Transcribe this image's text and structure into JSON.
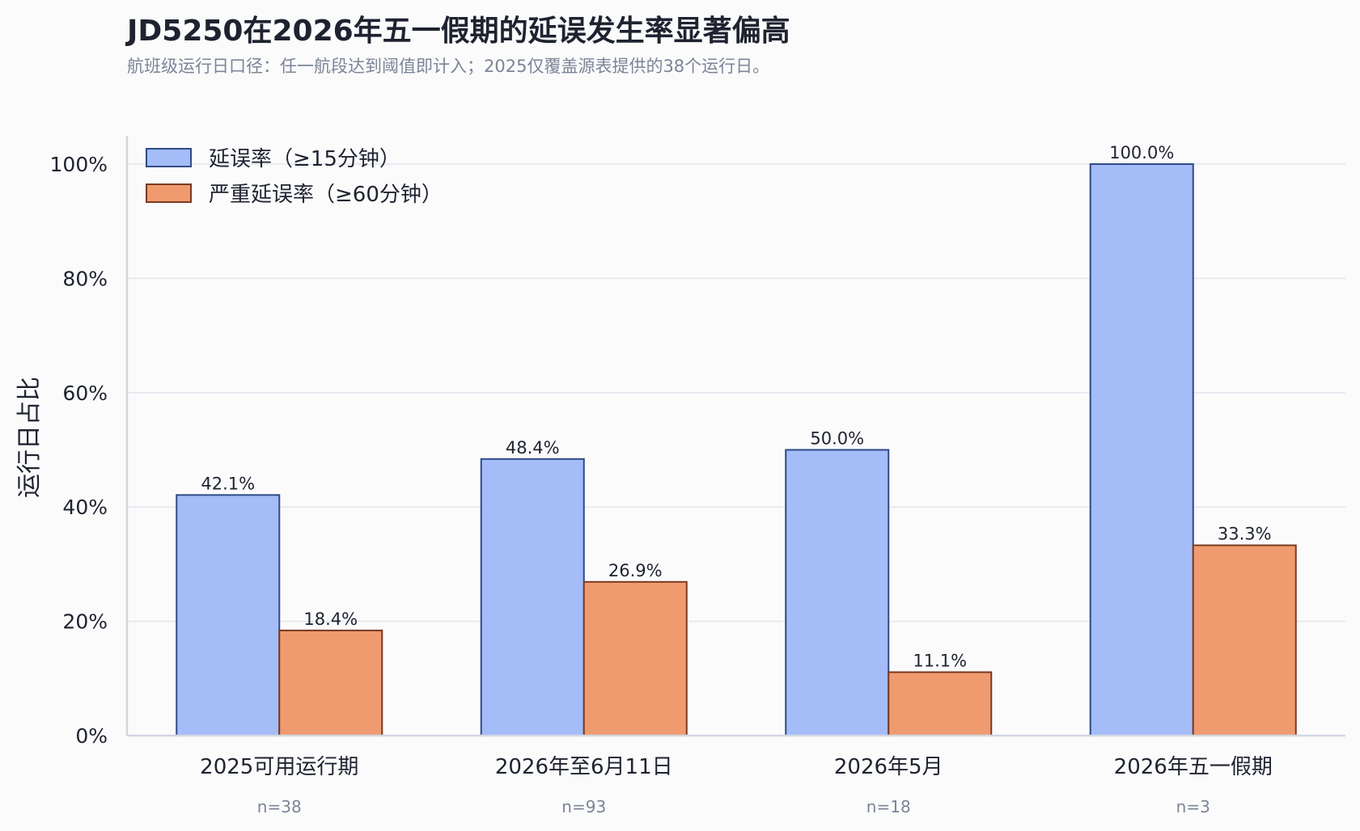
{
  "chart_data": {
    "type": "bar",
    "title": "JD5250在2026年五一假期的延误发生率显著偏高",
    "subtitle": "航班级运行日口径：任一航段达到阈值即计入；2025仅覆盖源表提供的38个运行日。",
    "ylabel": "运行日占比",
    "xlabel": "",
    "ylim": [
      0,
      100
    ],
    "y_ticks": [
      "0%",
      "20%",
      "40%",
      "60%",
      "80%",
      "100%"
    ],
    "y_tick_values": [
      0,
      20,
      40,
      60,
      80,
      100
    ],
    "categories": [
      "2025可用运行期",
      "2026年至6月11日",
      "2026年5月",
      "2026年五一假期"
    ],
    "sample_sizes": [
      "n=38",
      "n=93",
      "n=18",
      "n=3"
    ],
    "series": [
      {
        "name": "延误率（≥15分钟）",
        "values": [
          42.1,
          48.4,
          50.0,
          100.0
        ],
        "labels": [
          "42.1%",
          "48.4%",
          "50.0%",
          "100.0%"
        ],
        "color": "#a4bdf9",
        "edge": "#2f4a85"
      },
      {
        "name": "严重延误率（≥60分钟）",
        "values": [
          18.4,
          26.9,
          11.1,
          33.3
        ],
        "labels": [
          "18.4%",
          "26.9%",
          "11.1%",
          "33.3%"
        ],
        "color": "#f09a6f",
        "edge": "#7a3a22"
      }
    ],
    "grid": true,
    "legend_position": "top-left"
  }
}
